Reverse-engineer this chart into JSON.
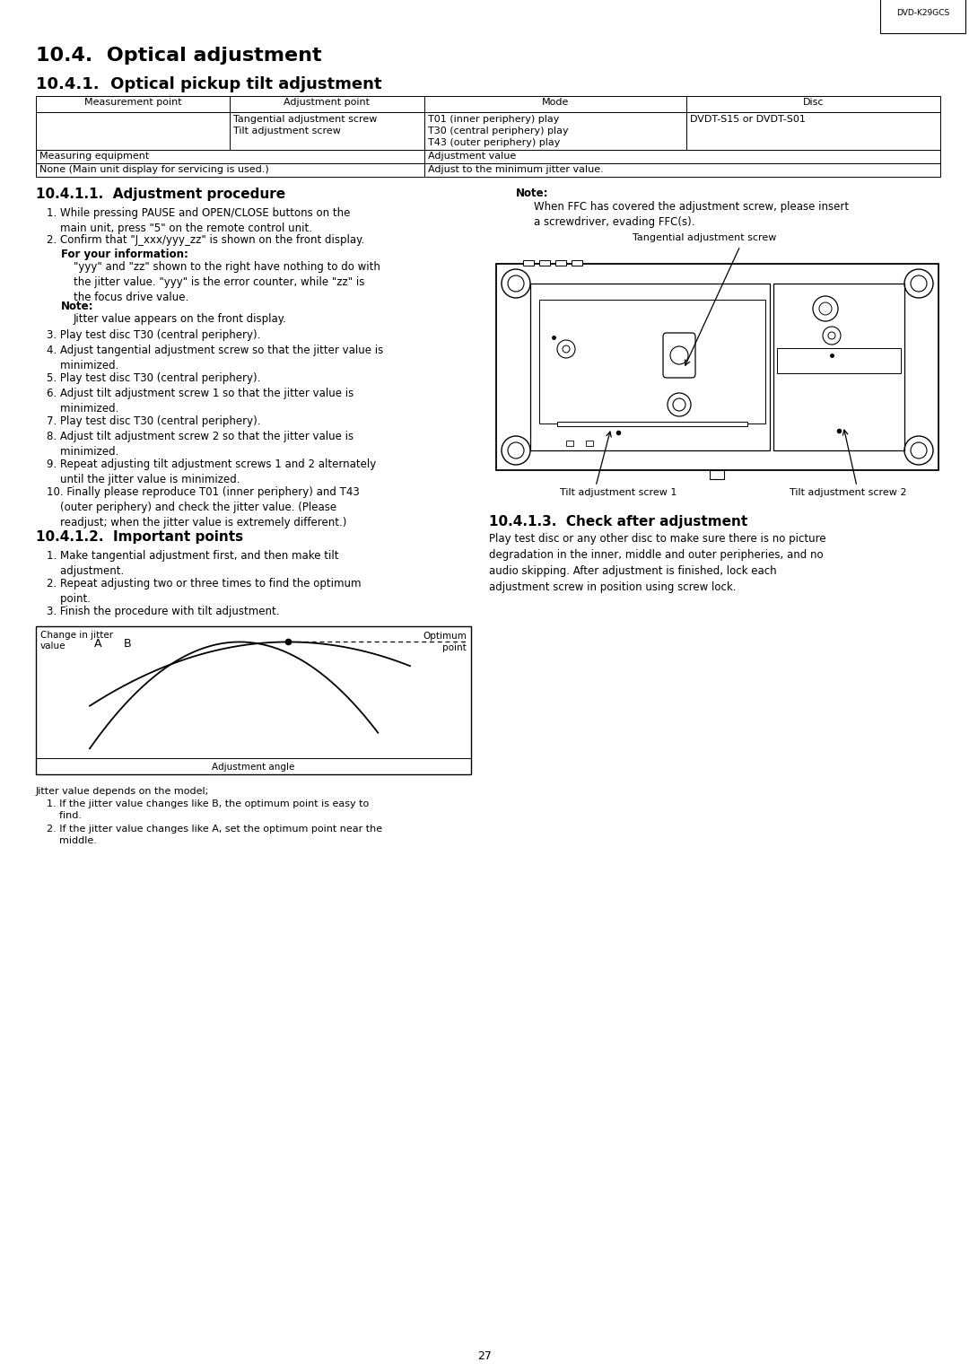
{
  "page_title": "10.4.  Optical adjustment",
  "section_title": "10.4.1.  Optical pickup tilt adjustment",
  "header_label": "DVD-K29GCS",
  "col_headers": [
    "Measurement point",
    "Adjustment point",
    "Mode",
    "Disc"
  ],
  "section_111": "10.4.1.1.  Adjustment procedure",
  "section_112": "10.4.1.2.  Important points",
  "section_113": "10.4.1.3.  Check after adjustment",
  "right_note_title": "Note:",
  "right_note": "When FFC has covered the adjustment screw, please insert\na screwdriver, evading FFC(s).",
  "right_label_tang": "Tangential adjustment screw",
  "right_label_tilt1": "Tilt adjustment screw 1",
  "right_label_tilt2": "Tilt adjustment screw 2",
  "check_text": "Play test disc or any other disc to make sure there is no picture\ndegradation in the inner, middle and outer peripheries, and no\naudio skipping. After adjustment is finished, lock each\nadjustment screw in position using screw lock.",
  "page_number": "27",
  "bg_color": "#ffffff"
}
